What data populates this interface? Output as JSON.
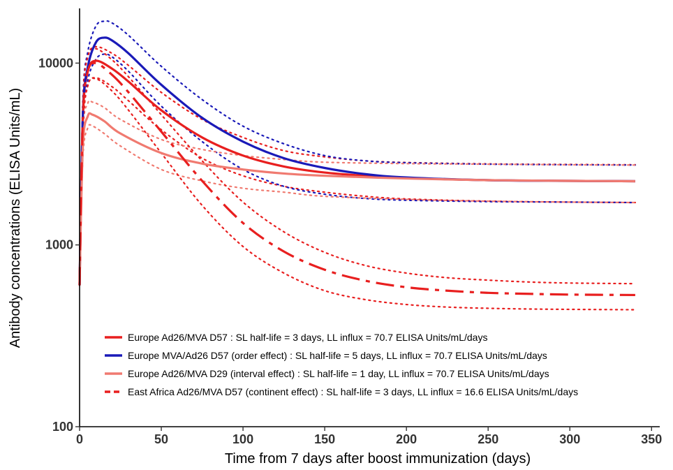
{
  "chart_data": {
    "type": "line",
    "title": "",
    "xlabel": "Time from 7 days after boost immunization (days)",
    "ylabel": "Antibody concentrations (ELISA Units/mL)",
    "xlim": [
      0,
      355
    ],
    "ylim": [
      100,
      20000
    ],
    "y_scale": "log",
    "grid": false,
    "legend_position": "bottom-left",
    "x_ticks": [
      0,
      50,
      100,
      150,
      200,
      250,
      300,
      350
    ],
    "x_tick_labels": [
      "0",
      "50",
      "100",
      "150",
      "200",
      "250",
      "300",
      "350"
    ],
    "y_ticks": [
      100,
      1000,
      10000
    ],
    "y_tick_labels": [
      "100",
      "1000",
      "10000"
    ],
    "series": [
      {
        "name": "Europe Ad26/MVA D57 : SL half-life = 3 days, LL influx = 70.7 ELISA Units/mL/days",
        "color": "#e81f1f",
        "style": "solid",
        "x": [
          0,
          2,
          5,
          10,
          20,
          30,
          50,
          75,
          100,
          125,
          150,
          175,
          200,
          250,
          300,
          340
        ],
        "y": [
          600,
          5000,
          9000,
          10300,
          9300,
          7900,
          5500,
          3900,
          3100,
          2700,
          2500,
          2400,
          2330,
          2270,
          2250,
          2240
        ],
        "lower": [
          600,
          4200,
          7500,
          8300,
          7400,
          6200,
          4300,
          3000,
          2400,
          2100,
          1950,
          1850,
          1790,
          1740,
          1720,
          1710
        ],
        "upper": [
          600,
          6000,
          10800,
          12300,
          11300,
          9700,
          6900,
          4900,
          3900,
          3300,
          3050,
          2900,
          2840,
          2790,
          2770,
          2760
        ]
      },
      {
        "name": "Europe MVA/Ad26 D57 (order effect) : SL half-life = 5 days, LL influx = 70.7 ELISA Units/mL/days",
        "color": "#1a1ab8",
        "style": "solid",
        "x": [
          0,
          2,
          5,
          10,
          15,
          20,
          30,
          50,
          75,
          100,
          125,
          150,
          175,
          200,
          250,
          300,
          340
        ],
        "y": [
          600,
          5200,
          9500,
          13000,
          13800,
          13300,
          11300,
          7600,
          5000,
          3700,
          3000,
          2650,
          2450,
          2350,
          2270,
          2250,
          2240
        ],
        "lower": [
          600,
          4300,
          8000,
          10500,
          11200,
          10800,
          9000,
          5800,
          3700,
          2600,
          2100,
          1900,
          1800,
          1760,
          1730,
          1720,
          1710
        ],
        "upper": [
          600,
          6200,
          11500,
          16000,
          17000,
          16600,
          14200,
          9600,
          6300,
          4500,
          3600,
          3100,
          2900,
          2830,
          2780,
          2760,
          2750
        ]
      },
      {
        "name": "Europe Ad26/MVA D29 (interval effect) : SL half-life = 1 day, LL influx = 70.7 ELISA Units/mL/days",
        "color": "#f07a70",
        "style": "solid",
        "x": [
          0,
          2,
          5,
          8,
          15,
          25,
          50,
          75,
          100,
          125,
          150,
          200,
          250,
          300,
          340
        ],
        "y": [
          600,
          3500,
          5100,
          5200,
          4800,
          4100,
          3200,
          2800,
          2600,
          2470,
          2400,
          2320,
          2270,
          2250,
          2240
        ],
        "lower": [
          600,
          3000,
          4400,
          4500,
          4100,
          3500,
          2600,
          2250,
          2050,
          1950,
          1850,
          1780,
          1740,
          1720,
          1710
        ],
        "upper": [
          600,
          4100,
          6000,
          6100,
          5700,
          4900,
          3800,
          3350,
          3100,
          2950,
          2850,
          2800,
          2780,
          2760,
          2750
        ]
      },
      {
        "name": "East Africa Ad26/MVA D57 (continent effect) : SL half-life = 3 days, LL influx = 16.6 ELISA Units/mL/days",
        "color": "#e81f1f",
        "style": "dashdot",
        "x": [
          0,
          2,
          5,
          10,
          20,
          30,
          50,
          75,
          100,
          125,
          150,
          175,
          200,
          225,
          250,
          275,
          300,
          340
        ],
        "y": [
          600,
          5000,
          9000,
          10000,
          8600,
          6900,
          4200,
          2250,
          1320,
          920,
          730,
          635,
          585,
          560,
          545,
          538,
          533,
          530
        ],
        "lower": [
          600,
          4200,
          7500,
          8200,
          7000,
          5500,
          3200,
          1650,
          980,
          700,
          560,
          500,
          470,
          455,
          448,
          444,
          442,
          440
        ],
        "upper": [
          600,
          6000,
          10800,
          12000,
          10400,
          8400,
          5200,
          2900,
          1720,
          1180,
          910,
          770,
          700,
          660,
          640,
          625,
          617,
          612
        ]
      }
    ]
  }
}
